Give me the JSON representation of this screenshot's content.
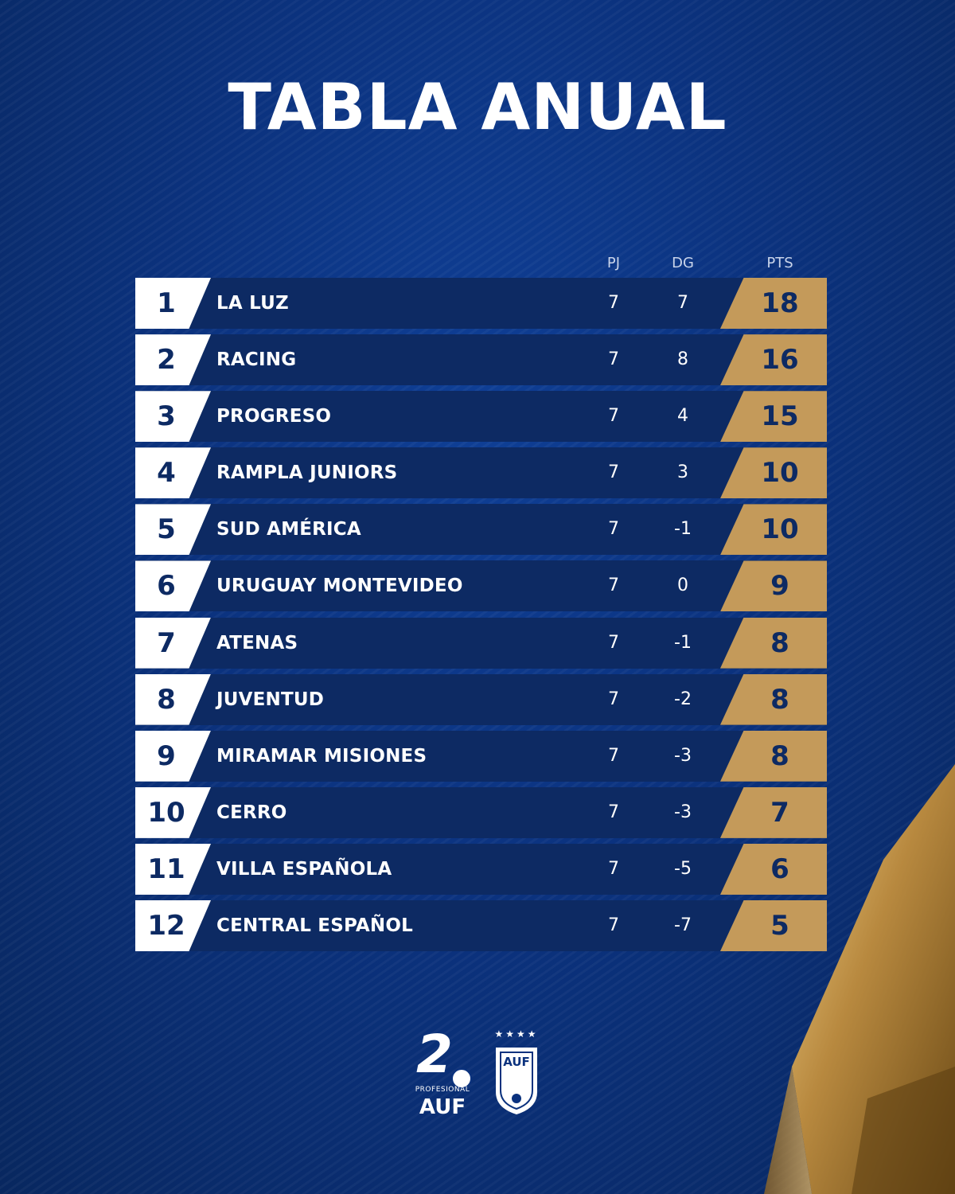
{
  "title": "TABLA ANUAL",
  "columns": {
    "pj": "PJ",
    "dg": "DG",
    "pts": "PTS"
  },
  "standings": [
    {
      "pos": "1",
      "team": "LA LUZ",
      "pj": "7",
      "dg": "7",
      "pts": "18"
    },
    {
      "pos": "2",
      "team": "RACING",
      "pj": "7",
      "dg": "8",
      "pts": "16"
    },
    {
      "pos": "3",
      "team": "PROGRESO",
      "pj": "7",
      "dg": "4",
      "pts": "15"
    },
    {
      "pos": "4",
      "team": "RAMPLA JUNIORS",
      "pj": "7",
      "dg": "3",
      "pts": "10"
    },
    {
      "pos": "5",
      "team": "SUD AMÉRICA",
      "pj": "7",
      "dg": "-1",
      "pts": "10"
    },
    {
      "pos": "6",
      "team": "URUGUAY MONTEVIDEO",
      "pj": "7",
      "dg": "0",
      "pts": "9"
    },
    {
      "pos": "7",
      "team": "ATENAS",
      "pj": "7",
      "dg": "-1",
      "pts": "8"
    },
    {
      "pos": "8",
      "team": "JUVENTUD",
      "pj": "7",
      "dg": "-2",
      "pts": "8"
    },
    {
      "pos": "9",
      "team": "MIRAMAR MISIONES",
      "pj": "7",
      "dg": "-3",
      "pts": "8"
    },
    {
      "pos": "10",
      "team": "CERRO",
      "pj": "7",
      "dg": "-3",
      "pts": "7"
    },
    {
      "pos": "11",
      "team": "VILLA ESPAÑOLA",
      "pj": "7",
      "dg": "-5",
      "pts": "6"
    },
    {
      "pos": "12",
      "team": "CENTRAL ESPAÑOL",
      "pj": "7",
      "dg": "-7",
      "pts": "5"
    }
  ],
  "logos": {
    "division": {
      "number": "2",
      "sub": "PROFESIONAL",
      "name": "AUF",
      "icon": "soccer-ball-icon"
    },
    "federation": {
      "stars": "★★★★",
      "initials": "AUF",
      "icon": "auf-shield-icon"
    }
  },
  "colors": {
    "background": "#0b327e",
    "row": "#0d2a63",
    "points": "#c49a5a",
    "position": "#ffffff"
  }
}
